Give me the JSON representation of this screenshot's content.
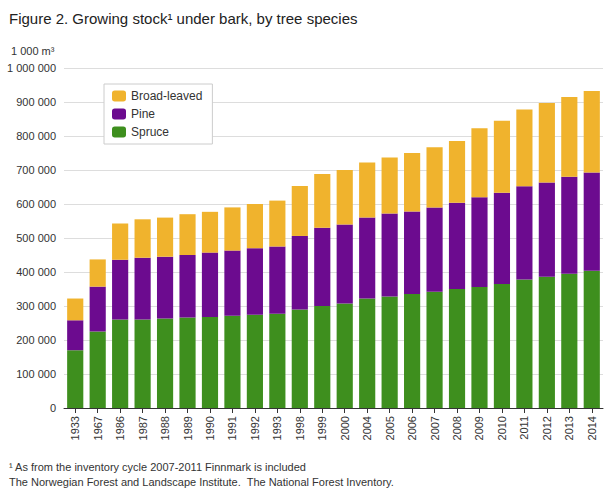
{
  "chart_data": {
    "type": "bar",
    "title": "Figure 2. Growing stock¹ under bark, by tree species",
    "y_label": "1 000 m³",
    "notes": [
      "¹ As from the inventory cycle 2007-2011 Finnmark is included",
      "The Norwegian Forest and Landscape Institute.  The National Forest Inventory."
    ],
    "categories": [
      "1933",
      "1967",
      "1986",
      "1987",
      "1988",
      "1989",
      "1990",
      "1991",
      "1992",
      "1993",
      "1998",
      "1999",
      "2000",
      "2004",
      "2005",
      "2006",
      "2007",
      "2008",
      "2009",
      "2010",
      "2011",
      "2012",
      "2013",
      "2014"
    ],
    "series": [
      {
        "name": "Spruce",
        "color": "#3e8f1e",
        "values": [
          170000,
          225000,
          260000,
          260000,
          263000,
          266000,
          268000,
          271000,
          274000,
          277000,
          290000,
          300000,
          307000,
          322000,
          328000,
          335000,
          342000,
          350000,
          356000,
          365000,
          378000,
          386000,
          395000,
          404000
        ]
      },
      {
        "name": "Pine",
        "color": "#6c0b8f",
        "values": [
          88000,
          132000,
          176000,
          182000,
          182000,
          184000,
          189000,
          192000,
          196000,
          198000,
          216000,
          230000,
          233000,
          238000,
          244000,
          243000,
          248000,
          254000,
          264000,
          268000,
          274000,
          277000,
          285000,
          289000
        ]
      },
      {
        "name": "Broad-leaved",
        "color": "#f0b32d",
        "values": [
          64000,
          80000,
          107000,
          113000,
          115000,
          120000,
          120000,
          127000,
          130000,
          135000,
          147000,
          158000,
          160000,
          162000,
          165000,
          172000,
          177000,
          181000,
          203000,
          212000,
          226000,
          234000,
          235000,
          239000
        ]
      }
    ],
    "stacked": true,
    "legend": "upper left",
    "grid": true,
    "ylim": [
      0,
      1000000
    ],
    "yticks": [
      0,
      {
        "value": 100000,
        "label": "100 000"
      },
      {
        "value": 200000,
        "label": "200 000"
      },
      {
        "value": 300000,
        "label": "300 000"
      },
      {
        "value": 400000,
        "label": "400 000"
      },
      {
        "value": 500000,
        "label": "500 000"
      },
      {
        "value": 600000,
        "label": "600 000"
      },
      {
        "value": 700000,
        "label": "700 000"
      },
      {
        "value": 800000,
        "label": "800 000"
      },
      {
        "value": 900000,
        "label": "900 000"
      },
      {
        "value": 1000000,
        "label": "1 000 000"
      }
    ]
  }
}
